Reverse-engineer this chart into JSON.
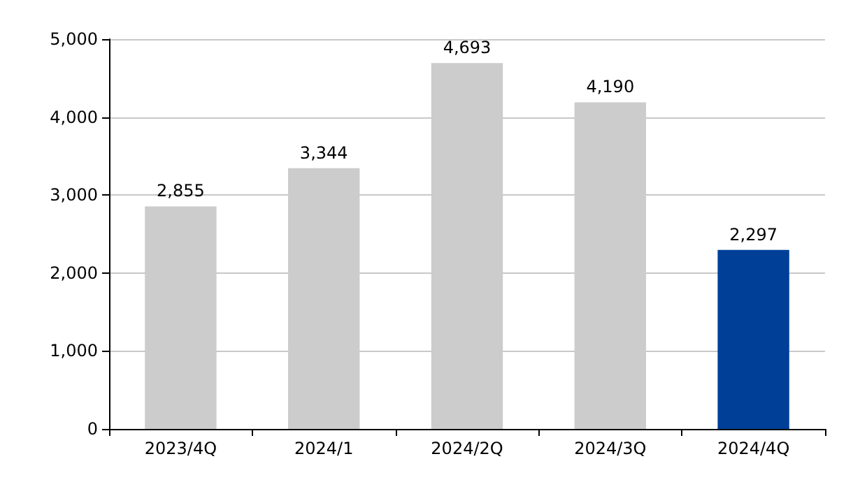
{
  "chart_data": {
    "type": "bar",
    "categories": [
      "2023/4Q",
      "2024/1",
      "2024/2Q",
      "2024/3Q",
      "2024/4Q"
    ],
    "values": [
      2855,
      3344,
      4693,
      4190,
      2297
    ],
    "colors": [
      "#cccccc",
      "#cccccc",
      "#cccccc",
      "#cccccc",
      "#003f98"
    ],
    "ylim": [
      0,
      5000
    ],
    "yticks": [
      {
        "value": 0,
        "label": "0"
      },
      {
        "value": 1000,
        "label": "1,000"
      },
      {
        "value": 2000,
        "label": "2,000"
      },
      {
        "value": 3000,
        "label": "3,000"
      },
      {
        "value": 4000,
        "label": "4,000"
      },
      {
        "value": 5000,
        "label": "5,000"
      }
    ],
    "value_labels": [
      "2,855",
      "3,344",
      "4,693",
      "4,190",
      "2,297"
    ],
    "grid": "y"
  }
}
